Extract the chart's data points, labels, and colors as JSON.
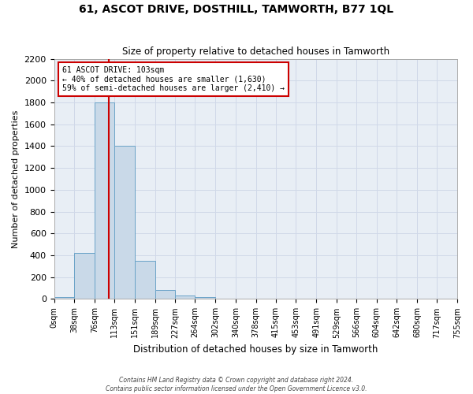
{
  "title": "61, ASCOT DRIVE, DOSTHILL, TAMWORTH, B77 1QL",
  "subtitle": "Size of property relative to detached houses in Tamworth",
  "xlabel": "Distribution of detached houses by size in Tamworth",
  "ylabel": "Number of detached properties",
  "bin_edges": [
    0,
    38,
    76,
    113,
    151,
    189,
    227,
    264,
    302,
    340,
    378,
    415,
    453,
    491,
    529,
    566,
    604,
    642,
    680,
    717,
    755
  ],
  "bar_heights": [
    20,
    420,
    1800,
    1400,
    350,
    80,
    30,
    20,
    5,
    0,
    0,
    0,
    0,
    0,
    0,
    0,
    0,
    0,
    0,
    0
  ],
  "bar_color": "#c9d9e8",
  "bar_edge_color": "#6aa3c8",
  "grid_color": "#d0d8e8",
  "bg_color": "#e8eef5",
  "property_size": 103,
  "vline_color": "#cc0000",
  "annotation_line1": "61 ASCOT DRIVE: 103sqm",
  "annotation_line2": "← 40% of detached houses are smaller (1,630)",
  "annotation_line3": "59% of semi-detached houses are larger (2,410) →",
  "annotation_box_color": "#ffffff",
  "annotation_box_edge": "#cc0000",
  "ylim": [
    0,
    2200
  ],
  "yticks": [
    0,
    200,
    400,
    600,
    800,
    1000,
    1200,
    1400,
    1600,
    1800,
    2000,
    2200
  ],
  "footer_line1": "Contains HM Land Registry data © Crown copyright and database right 2024.",
  "footer_line2": "Contains public sector information licensed under the Open Government Licence v3.0."
}
